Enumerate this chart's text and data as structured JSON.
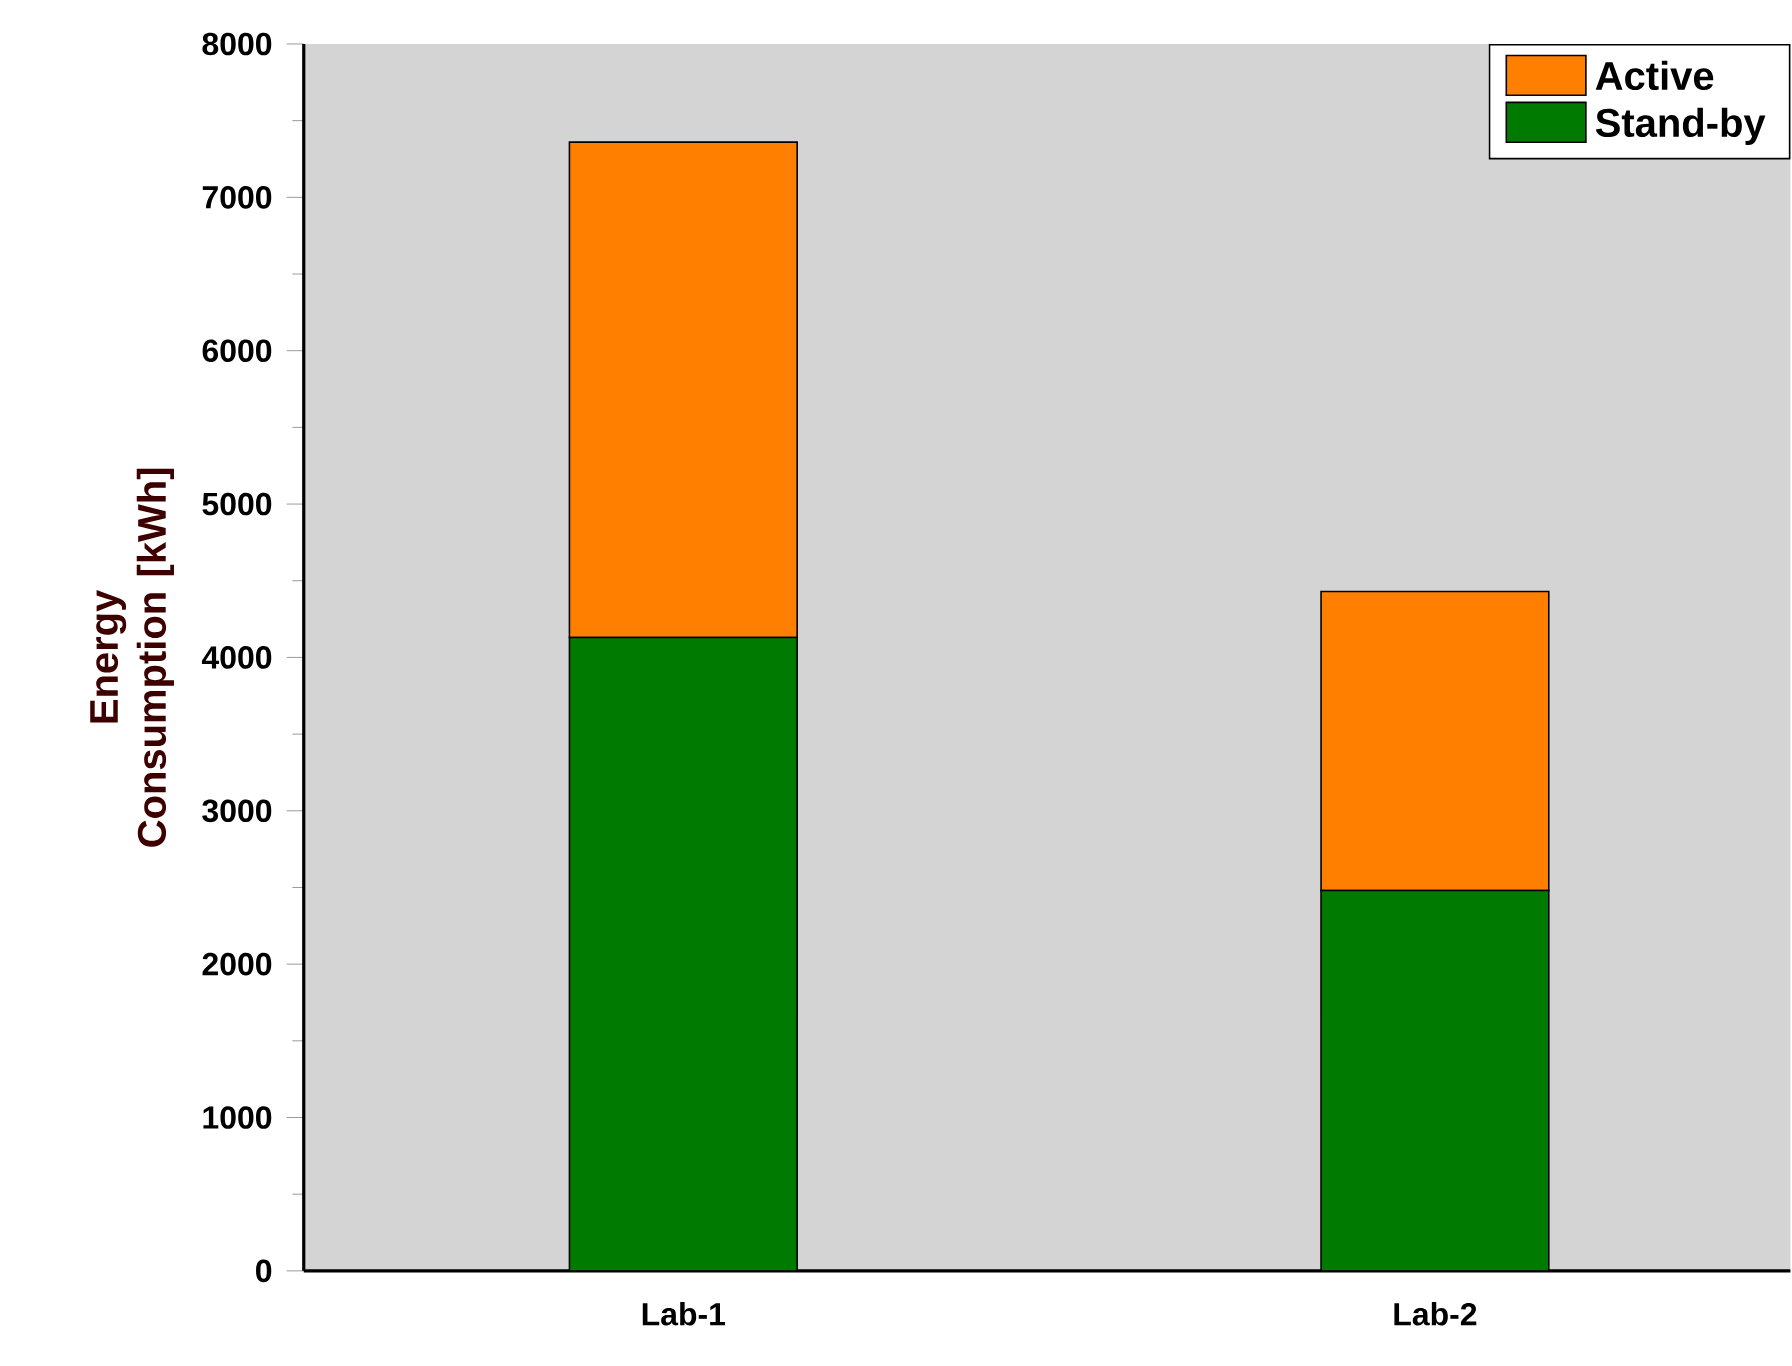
{
  "chart_data": {
    "type": "bar",
    "stacked": true,
    "ylabel": "Energy Consumption [kWh]",
    "categories": [
      "Lab-1",
      "Lab-2"
    ],
    "series": [
      {
        "name": "Stand-by",
        "color": "#007a00",
        "values": [
          4130,
          2480
        ]
      },
      {
        "name": "Active",
        "color": "#ff8000",
        "values": [
          3230,
          1950
        ]
      }
    ],
    "ylim": [
      0,
      8000
    ],
    "yticks": [
      0,
      1000,
      2000,
      3000,
      4000,
      5000,
      6000,
      7000,
      8000
    ],
    "legend": "top right",
    "grid": false
  }
}
